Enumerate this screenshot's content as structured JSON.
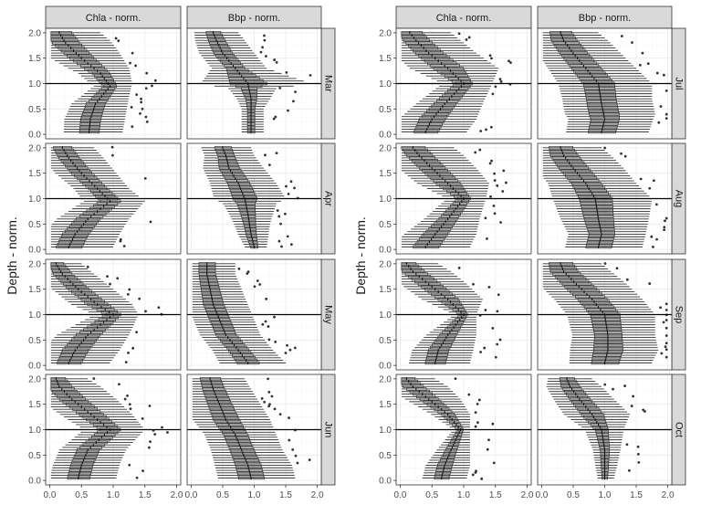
{
  "chart_data": {
    "type": "box",
    "orientation": "horizontal",
    "ylabel": "Depth - norm.",
    "xlim": [
      0,
      2
    ],
    "ylim": [
      0,
      2
    ],
    "x_ticks": [
      "0.0",
      "0.5",
      "1.0",
      "1.5",
      "2.0"
    ],
    "y_ticks": [
      "0.0",
      "0.5",
      "1.0",
      "1.5",
      "2.0"
    ],
    "reference_line_y": 1.0,
    "variables": [
      "Chla - norm.",
      "Bbp - norm."
    ],
    "panels": [
      {
        "month": "Mar",
        "chla_median": [
          [
            0.62,
            0.05
          ],
          [
            0.64,
            0.3
          ],
          [
            0.72,
            0.6
          ],
          [
            0.95,
            0.95
          ],
          [
            0.8,
            1.2
          ],
          [
            0.5,
            1.5
          ],
          [
            0.25,
            1.8
          ],
          [
            0.15,
            2.0
          ]
        ],
        "chla_whisker": [
          [
            1.15,
            0.05
          ],
          [
            1.2,
            0.4
          ],
          [
            1.25,
            0.75
          ],
          [
            1.3,
            1.0
          ],
          [
            1.25,
            1.3
          ],
          [
            1.1,
            1.6
          ],
          [
            0.95,
            1.85
          ],
          [
            0.8,
            2.0
          ]
        ],
        "bbp_median": [
          [
            0.95,
            0.05
          ],
          [
            0.95,
            0.3
          ],
          [
            0.95,
            0.7
          ],
          [
            0.9,
            1.0
          ],
          [
            0.7,
            1.3
          ],
          [
            0.5,
            1.6
          ],
          [
            0.4,
            1.85
          ],
          [
            0.35,
            2.0
          ]
        ],
        "bbp_whisker": [
          [
            1.15,
            0.05
          ],
          [
            1.15,
            0.5
          ],
          [
            1.35,
            0.9
          ],
          [
            1.9,
            1.0
          ],
          [
            1.2,
            1.3
          ],
          [
            1.0,
            1.6
          ],
          [
            0.85,
            1.85
          ],
          [
            0.75,
            2.0
          ]
        ]
      },
      {
        "month": "Apr",
        "chla_median": [
          [
            0.3,
            0.05
          ],
          [
            0.4,
            0.3
          ],
          [
            0.6,
            0.6
          ],
          [
            0.95,
            0.95
          ],
          [
            0.75,
            1.2
          ],
          [
            0.5,
            1.5
          ],
          [
            0.3,
            1.8
          ],
          [
            0.2,
            2.0
          ]
        ],
        "chla_whisker": [
          [
            1.0,
            0.05
          ],
          [
            1.1,
            0.3
          ],
          [
            1.25,
            0.6
          ],
          [
            1.5,
            0.95
          ],
          [
            1.25,
            1.2
          ],
          [
            1.05,
            1.5
          ],
          [
            0.85,
            1.8
          ],
          [
            0.7,
            2.0
          ]
        ],
        "bbp_median": [
          [
            1.0,
            0.05
          ],
          [
            0.95,
            0.3
          ],
          [
            0.9,
            0.7
          ],
          [
            0.85,
            1.0
          ],
          [
            0.75,
            1.3
          ],
          [
            0.6,
            1.6
          ],
          [
            0.55,
            1.85
          ],
          [
            0.5,
            2.0
          ]
        ],
        "bbp_whisker": [
          [
            1.2,
            0.05
          ],
          [
            1.25,
            0.5
          ],
          [
            1.35,
            0.9
          ],
          [
            1.5,
            1.0
          ],
          [
            1.35,
            1.3
          ],
          [
            1.15,
            1.6
          ],
          [
            1.0,
            1.85
          ],
          [
            0.95,
            2.0
          ]
        ]
      },
      {
        "month": "May",
        "chla_median": [
          [
            0.3,
            0.05
          ],
          [
            0.4,
            0.3
          ],
          [
            0.6,
            0.6
          ],
          [
            1.0,
            1.0
          ],
          [
            0.75,
            1.2
          ],
          [
            0.45,
            1.5
          ],
          [
            0.2,
            1.8
          ],
          [
            0.1,
            2.0
          ]
        ],
        "chla_whisker": [
          [
            0.95,
            0.05
          ],
          [
            1.1,
            0.3
          ],
          [
            1.25,
            0.6
          ],
          [
            1.4,
            1.0
          ],
          [
            1.3,
            1.2
          ],
          [
            1.0,
            1.5
          ],
          [
            0.7,
            1.8
          ],
          [
            0.5,
            2.0
          ]
        ],
        "bbp_median": [
          [
            0.9,
            0.05
          ],
          [
            0.75,
            0.3
          ],
          [
            0.55,
            0.6
          ],
          [
            0.45,
            0.9
          ],
          [
            0.35,
            1.2
          ],
          [
            0.3,
            1.5
          ],
          [
            0.25,
            1.8
          ],
          [
            0.25,
            2.0
          ]
        ],
        "bbp_whisker": [
          [
            1.5,
            0.05
          ],
          [
            1.3,
            0.3
          ],
          [
            1.1,
            0.6
          ],
          [
            1.0,
            0.9
          ],
          [
            0.9,
            1.2
          ],
          [
            0.8,
            1.5
          ],
          [
            0.7,
            1.8
          ],
          [
            0.7,
            2.0
          ]
        ]
      },
      {
        "month": "Jun",
        "chla_median": [
          [
            0.45,
            0.05
          ],
          [
            0.5,
            0.3
          ],
          [
            0.6,
            0.6
          ],
          [
            0.95,
            1.0
          ],
          [
            0.65,
            1.3
          ],
          [
            0.35,
            1.6
          ],
          [
            0.15,
            1.85
          ],
          [
            0.1,
            2.0
          ]
        ],
        "chla_whisker": [
          [
            1.05,
            0.05
          ],
          [
            1.1,
            0.3
          ],
          [
            1.2,
            0.6
          ],
          [
            1.5,
            1.0
          ],
          [
            1.3,
            1.3
          ],
          [
            1.05,
            1.6
          ],
          [
            0.8,
            1.85
          ],
          [
            0.6,
            2.0
          ]
        ],
        "bbp_median": [
          [
            0.95,
            0.05
          ],
          [
            0.9,
            0.3
          ],
          [
            0.8,
            0.6
          ],
          [
            0.7,
            0.9
          ],
          [
            0.55,
            1.2
          ],
          [
            0.45,
            1.5
          ],
          [
            0.35,
            1.8
          ],
          [
            0.3,
            2.0
          ]
        ],
        "bbp_whisker": [
          [
            1.65,
            0.05
          ],
          [
            1.6,
            0.3
          ],
          [
            1.45,
            0.6
          ],
          [
            1.35,
            0.9
          ],
          [
            1.25,
            1.2
          ],
          [
            1.1,
            1.5
          ],
          [
            0.95,
            1.8
          ],
          [
            0.85,
            2.0
          ]
        ]
      },
      {
        "month": "Jul",
        "chla_median": [
          [
            0.4,
            0.05
          ],
          [
            0.5,
            0.3
          ],
          [
            0.7,
            0.6
          ],
          [
            1.0,
            1.0
          ],
          [
            0.75,
            1.3
          ],
          [
            0.45,
            1.6
          ],
          [
            0.25,
            1.85
          ],
          [
            0.15,
            2.0
          ]
        ],
        "chla_whisker": [
          [
            1.05,
            0.05
          ],
          [
            1.2,
            0.3
          ],
          [
            1.3,
            0.6
          ],
          [
            1.45,
            1.0
          ],
          [
            1.55,
            1.3
          ],
          [
            1.2,
            1.6
          ],
          [
            0.95,
            1.85
          ],
          [
            0.8,
            2.0
          ]
        ],
        "bbp_median": [
          [
            0.95,
            0.05
          ],
          [
            1.0,
            0.3
          ],
          [
            0.95,
            0.6
          ],
          [
            0.9,
            1.0
          ],
          [
            0.7,
            1.3
          ],
          [
            0.5,
            1.6
          ],
          [
            0.35,
            1.85
          ],
          [
            0.3,
            2.0
          ]
        ],
        "bbp_whisker": [
          [
            1.7,
            0.05
          ],
          [
            1.8,
            0.4
          ],
          [
            1.75,
            0.7
          ],
          [
            1.75,
            1.0
          ],
          [
            1.5,
            1.3
          ],
          [
            1.25,
            1.6
          ],
          [
            1.05,
            1.85
          ],
          [
            0.9,
            2.0
          ]
        ]
      },
      {
        "month": "Aug",
        "chla_median": [
          [
            0.4,
            0.05
          ],
          [
            0.55,
            0.3
          ],
          [
            0.75,
            0.6
          ],
          [
            1.0,
            1.0
          ],
          [
            0.75,
            1.3
          ],
          [
            0.5,
            1.6
          ],
          [
            0.3,
            1.85
          ],
          [
            0.2,
            2.0
          ]
        ],
        "chla_whisker": [
          [
            1.1,
            0.05
          ],
          [
            1.2,
            0.3
          ],
          [
            1.25,
            0.6
          ],
          [
            1.35,
            1.0
          ],
          [
            1.4,
            1.3
          ],
          [
            1.2,
            1.6
          ],
          [
            1.0,
            1.85
          ],
          [
            0.85,
            2.0
          ]
        ],
        "bbp_median": [
          [
            0.9,
            0.05
          ],
          [
            0.95,
            0.3
          ],
          [
            0.9,
            0.6
          ],
          [
            0.85,
            1.0
          ],
          [
            0.7,
            1.3
          ],
          [
            0.5,
            1.6
          ],
          [
            0.35,
            1.85
          ],
          [
            0.3,
            2.0
          ]
        ],
        "bbp_whisker": [
          [
            1.6,
            0.05
          ],
          [
            1.65,
            0.3
          ],
          [
            1.7,
            0.6
          ],
          [
            1.75,
            1.0
          ],
          [
            1.5,
            1.3
          ],
          [
            1.3,
            1.6
          ],
          [
            1.1,
            1.85
          ],
          [
            0.95,
            2.0
          ]
        ]
      },
      {
        "month": "Sep",
        "chla_median": [
          [
            0.55,
            0.05
          ],
          [
            0.6,
            0.3
          ],
          [
            0.75,
            0.6
          ],
          [
            1.0,
            1.0
          ],
          [
            0.75,
            1.3
          ],
          [
            0.45,
            1.6
          ],
          [
            0.2,
            1.85
          ],
          [
            0.1,
            2.0
          ]
        ],
        "chla_whisker": [
          [
            1.1,
            0.05
          ],
          [
            1.15,
            0.3
          ],
          [
            1.2,
            0.6
          ],
          [
            1.2,
            1.0
          ],
          [
            1.3,
            1.3
          ],
          [
            1.05,
            1.6
          ],
          [
            0.8,
            1.85
          ],
          [
            0.6,
            2.0
          ]
        ],
        "bbp_median": [
          [
            1.0,
            0.05
          ],
          [
            1.05,
            0.3
          ],
          [
            1.05,
            0.6
          ],
          [
            1.0,
            1.0
          ],
          [
            0.8,
            1.3
          ],
          [
            0.55,
            1.6
          ],
          [
            0.35,
            1.85
          ],
          [
            0.3,
            2.0
          ]
        ],
        "bbp_whisker": [
          [
            1.75,
            0.05
          ],
          [
            1.85,
            0.3
          ],
          [
            1.8,
            0.6
          ],
          [
            1.8,
            1.0
          ],
          [
            1.6,
            1.3
          ],
          [
            1.35,
            1.6
          ],
          [
            1.1,
            1.85
          ],
          [
            0.95,
            2.0
          ]
        ]
      },
      {
        "month": "Oct",
        "chla_median": [
          [
            0.65,
            0.05
          ],
          [
            0.7,
            0.3
          ],
          [
            0.8,
            0.6
          ],
          [
            0.95,
            1.0
          ],
          [
            0.75,
            1.3
          ],
          [
            0.45,
            1.6
          ],
          [
            0.2,
            1.85
          ],
          [
            0.1,
            2.0
          ]
        ],
        "chla_whisker": [
          [
            1.05,
            0.05
          ],
          [
            1.1,
            0.3
          ],
          [
            1.1,
            0.6
          ],
          [
            1.1,
            1.0
          ],
          [
            1.1,
            1.3
          ],
          [
            0.95,
            1.6
          ],
          [
            0.75,
            1.85
          ],
          [
            0.55,
            2.0
          ]
        ],
        "bbp_median": [
          [
            1.0,
            0.05
          ],
          [
            1.0,
            0.3
          ],
          [
            1.0,
            0.6
          ],
          [
            0.95,
            1.0
          ],
          [
            0.8,
            1.3
          ],
          [
            0.6,
            1.6
          ],
          [
            0.45,
            1.85
          ],
          [
            0.4,
            2.0
          ]
        ],
        "bbp_whisker": [
          [
            1.15,
            0.05
          ],
          [
            1.2,
            0.3
          ],
          [
            1.25,
            0.6
          ],
          [
            1.3,
            1.0
          ],
          [
            1.4,
            1.3
          ],
          [
            1.15,
            1.6
          ],
          [
            0.95,
            1.85
          ],
          [
            0.8,
            2.0
          ]
        ]
      }
    ]
  }
}
